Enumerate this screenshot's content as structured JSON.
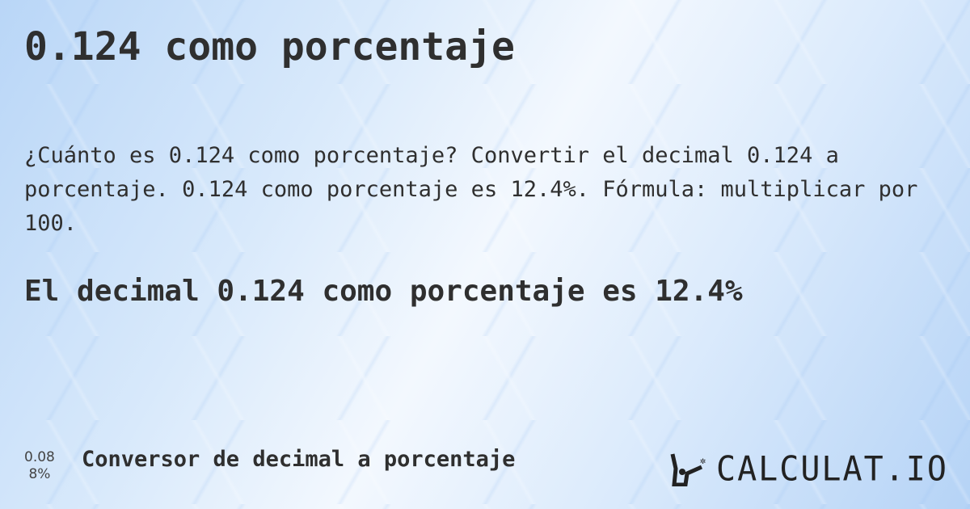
{
  "title": "0.124 como porcentaje",
  "description": "¿Cuánto es 0.124 como porcentaje? Convertir el decimal 0.124 a porcentaje. 0.124 como porcentaje es 12.4%. Fórmula: multiplicar por 100.",
  "answer": "El decimal 0.124 como porcentaje es 12.4%",
  "footer": {
    "icon_top": "0.08",
    "icon_bottom": "8%",
    "link": "Conversor de decimal a porcentaje",
    "logo": "CALCULAT.IO"
  }
}
